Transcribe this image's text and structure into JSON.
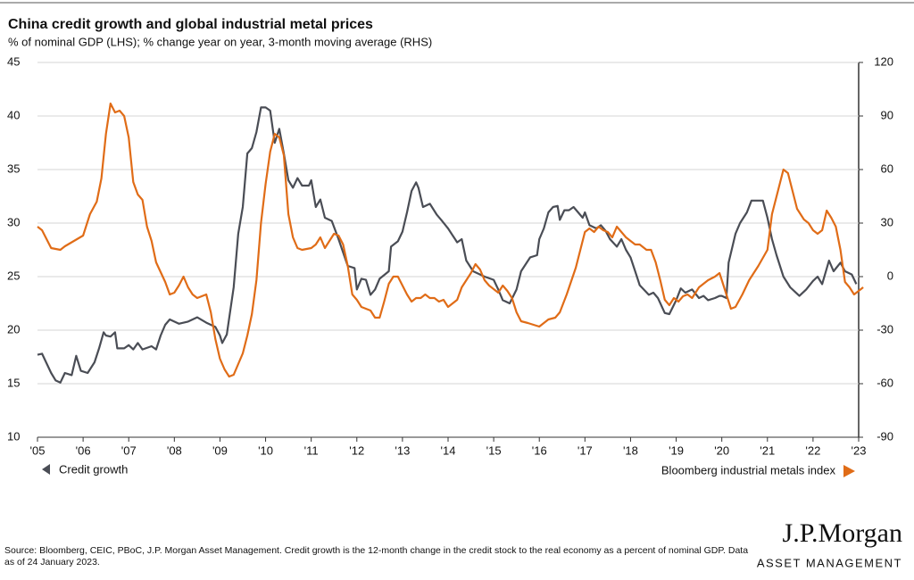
{
  "chart_data": {
    "type": "line",
    "title": "China credit growth and global industrial metal prices",
    "subtitle": "% of nominal GDP (LHS); % change year on year, 3-month moving average (RHS)",
    "xlim": [
      2005,
      2023
    ],
    "xticks": [
      {
        "value": 2005,
        "label": "'05"
      },
      {
        "value": 2006,
        "label": "'06"
      },
      {
        "value": 2007,
        "label": "'07"
      },
      {
        "value": 2008,
        "label": "'08"
      },
      {
        "value": 2009,
        "label": "'09"
      },
      {
        "value": 2010,
        "label": "'10"
      },
      {
        "value": 2011,
        "label": "'11"
      },
      {
        "value": 2012,
        "label": "'12"
      },
      {
        "value": 2013,
        "label": "'13"
      },
      {
        "value": 2014,
        "label": "'14"
      },
      {
        "value": 2015,
        "label": "'15"
      },
      {
        "value": 2016,
        "label": "'16"
      },
      {
        "value": 2017,
        "label": "'17"
      },
      {
        "value": 2018,
        "label": "'18"
      },
      {
        "value": 2019,
        "label": "'19"
      },
      {
        "value": 2020,
        "label": "'20"
      },
      {
        "value": 2021,
        "label": "'21"
      },
      {
        "value": 2022,
        "label": "'22"
      },
      {
        "value": 2023,
        "label": "'23"
      }
    ],
    "ylim": [
      10,
      45
    ],
    "yticks": [
      10,
      15,
      20,
      25,
      30,
      35,
      40,
      45
    ],
    "y2lim": [
      -90,
      120
    ],
    "y2ticks": [
      -90,
      -60,
      -30,
      0,
      30,
      60,
      90,
      120
    ],
    "grid": true,
    "series": [
      {
        "name": "Credit growth",
        "color": "#4a4d55",
        "axis": "y",
        "x": [
          2005.0,
          2005.1,
          2005.3,
          2005.4,
          2005.5,
          2005.6,
          2005.75,
          2005.85,
          2005.95,
          2006.1,
          2006.25,
          2006.35,
          2006.45,
          2006.5,
          2006.6,
          2006.7,
          2006.75,
          2006.9,
          2007.0,
          2007.1,
          2007.2,
          2007.3,
          2007.5,
          2007.6,
          2007.7,
          2007.8,
          2007.9,
          2008.1,
          2008.3,
          2008.5,
          2008.7,
          2008.9,
          2009.0,
          2009.05,
          2009.15,
          2009.3,
          2009.4,
          2009.5,
          2009.6,
          2009.7,
          2009.8,
          2009.9,
          2010.0,
          2010.1,
          2010.2,
          2010.3,
          2010.4,
          2010.5,
          2010.6,
          2010.7,
          2010.8,
          2010.95,
          2011.0,
          2011.1,
          2011.2,
          2011.3,
          2011.45,
          2011.6,
          2011.8,
          2011.95,
          2012.0,
          2012.1,
          2012.2,
          2012.3,
          2012.4,
          2012.5,
          2012.7,
          2012.75,
          2012.9,
          2013.0,
          2013.1,
          2013.2,
          2013.3,
          2013.35,
          2013.45,
          2013.6,
          2013.75,
          2013.85,
          2014.0,
          2014.2,
          2014.3,
          2014.4,
          2014.55,
          2014.7,
          2014.8,
          2015.0,
          2015.1,
          2015.2,
          2015.35,
          2015.5,
          2015.6,
          2015.8,
          2015.95,
          2016.0,
          2016.1,
          2016.2,
          2016.3,
          2016.4,
          2016.45,
          2016.55,
          2016.65,
          2016.75,
          2016.85,
          2016.95,
          2017.0,
          2017.1,
          2017.25,
          2017.35,
          2017.45,
          2017.55,
          2017.7,
          2017.8,
          2017.9,
          2018.0,
          2018.1,
          2018.2,
          2018.4,
          2018.5,
          2018.6,
          2018.75,
          2018.85,
          2019.0,
          2019.1,
          2019.2,
          2019.35,
          2019.5,
          2019.6,
          2019.7,
          2019.85,
          2019.95,
          2020.0,
          2020.1,
          2020.15,
          2020.3,
          2020.4,
          2020.55,
          2020.65,
          2020.8,
          2020.9,
          2021.0,
          2021.1,
          2021.2,
          2021.35,
          2021.5,
          2021.7,
          2021.85,
          2022.0,
          2022.1,
          2022.2,
          2022.35,
          2022.45,
          2022.6,
          2022.7,
          2022.85,
          2022.95
        ],
        "values": [
          17.7,
          17.8,
          16,
          15.3,
          15.1,
          16,
          15.8,
          17.6,
          16.2,
          16,
          17,
          18.3,
          19.8,
          19.5,
          19.4,
          19.8,
          18.3,
          18.3,
          18.6,
          18.2,
          18.8,
          18.2,
          18.5,
          18.2,
          19.5,
          20.5,
          21,
          20.6,
          20.8,
          21.2,
          20.7,
          20.3,
          19.5,
          18.8,
          19.6,
          24,
          29,
          31.5,
          36.5,
          37,
          38.5,
          40.8,
          40.8,
          40.5,
          37.5,
          38.8,
          36.5,
          34,
          33.3,
          34.2,
          33.5,
          33.5,
          34,
          31.5,
          32.2,
          30.5,
          30.2,
          28.5,
          26,
          25.8,
          23.8,
          24.8,
          24.7,
          23.3,
          23.8,
          24.8,
          25.5,
          27.8,
          28.3,
          29.2,
          31,
          33,
          33.8,
          33.3,
          31.5,
          31.8,
          30.8,
          30.3,
          29.5,
          28.2,
          28.5,
          26.5,
          25.5,
          25.2,
          25,
          24.7,
          23.8,
          22.8,
          22.5,
          23.8,
          25.5,
          26.8,
          27,
          28.5,
          29.5,
          31,
          31.5,
          31.6,
          30.3,
          31.2,
          31.2,
          31.5,
          31,
          30.5,
          31,
          29.8,
          29.5,
          29.8,
          29.3,
          28.5,
          27.8,
          28.5,
          27.5,
          26.8,
          25.5,
          24.2,
          23.3,
          23.5,
          23,
          21.6,
          21.5,
          22.8,
          23.9,
          23.5,
          23.8,
          23,
          23.2,
          22.8,
          23,
          23.2,
          23.2,
          23,
          26.3,
          29,
          30,
          31,
          32.1,
          32.1,
          32.1,
          30.5,
          28.5,
          27,
          25,
          24,
          23.2,
          23.8,
          24.6,
          25,
          24.3,
          26.5,
          25.5,
          26.3,
          25.5,
          25.2,
          24.3
        ]
      },
      {
        "name": "Bloomberg industrial metals index",
        "color": "#e06c17",
        "axis": "y2",
        "x": [
          2005.0,
          2005.1,
          2005.3,
          2005.5,
          2005.6,
          2005.8,
          2006.0,
          2006.15,
          2006.3,
          2006.4,
          2006.5,
          2006.6,
          2006.7,
          2006.8,
          2006.9,
          2007.0,
          2007.1,
          2007.2,
          2007.3,
          2007.4,
          2007.5,
          2007.6,
          2007.8,
          2007.9,
          2008.0,
          2008.1,
          2008.2,
          2008.3,
          2008.4,
          2008.5,
          2008.7,
          2008.8,
          2008.9,
          2009.0,
          2009.1,
          2009.2,
          2009.3,
          2009.4,
          2009.5,
          2009.6,
          2009.7,
          2009.8,
          2009.9,
          2010.0,
          2010.1,
          2010.2,
          2010.3,
          2010.4,
          2010.5,
          2010.6,
          2010.7,
          2010.8,
          2011.0,
          2011.1,
          2011.2,
          2011.3,
          2011.5,
          2011.6,
          2011.7,
          2011.8,
          2011.9,
          2012.0,
          2012.1,
          2012.3,
          2012.4,
          2012.5,
          2012.6,
          2012.7,
          2012.8,
          2012.9,
          2013.0,
          2013.1,
          2013.2,
          2013.3,
          2013.4,
          2013.5,
          2013.6,
          2013.7,
          2013.8,
          2013.9,
          2014.0,
          2014.1,
          2014.2,
          2014.3,
          2014.5,
          2014.6,
          2014.7,
          2014.8,
          2014.9,
          2015.0,
          2015.1,
          2015.2,
          2015.3,
          2015.4,
          2015.5,
          2015.6,
          2015.75,
          2016.0,
          2016.2,
          2016.35,
          2016.45,
          2016.6,
          2016.8,
          2016.9,
          2017.0,
          2017.1,
          2017.2,
          2017.3,
          2017.4,
          2017.5,
          2017.6,
          2017.7,
          2017.8,
          2017.9,
          2018.0,
          2018.1,
          2018.2,
          2018.35,
          2018.45,
          2018.55,
          2018.65,
          2018.75,
          2018.85,
          2018.95,
          2019.05,
          2019.15,
          2019.25,
          2019.35,
          2019.5,
          2019.7,
          2019.85,
          2019.95,
          2020.0,
          2020.1,
          2020.2,
          2020.3,
          2020.45,
          2020.6,
          2020.8,
          2021.0,
          2021.1,
          2021.25,
          2021.35,
          2021.45,
          2021.55,
          2021.65,
          2021.8,
          2021.9,
          2022.0,
          2022.1,
          2022.2,
          2022.3,
          2022.4,
          2022.5,
          2022.6,
          2022.7,
          2022.8,
          2022.9,
          2023.0,
          2023.1
        ],
        "values": [
          28,
          26,
          16,
          15,
          17,
          20,
          23,
          35,
          42,
          55,
          80,
          97,
          92,
          93,
          90,
          78,
          53,
          46,
          43,
          28,
          20,
          8,
          -3,
          -10,
          -9,
          -5,
          0,
          -6,
          -10,
          -12,
          -10,
          -20,
          -35,
          -46,
          -52,
          -56,
          -55,
          -49,
          -43,
          -33,
          -21,
          -2,
          30,
          52,
          70,
          80,
          78,
          68,
          35,
          22,
          16,
          15,
          16,
          18,
          22,
          16,
          24,
          23,
          18,
          6,
          -10,
          -13,
          -17,
          -19,
          -23,
          -23,
          -14,
          -4,
          0,
          0,
          -5,
          -10,
          -14,
          -12,
          -12,
          -10,
          -12,
          -12,
          -14,
          -13,
          -17,
          -15,
          -13,
          -6,
          2,
          7,
          4,
          -2,
          -5,
          -7,
          -9,
          -5,
          -8,
          -12,
          -20,
          -25,
          -26,
          -28,
          -24,
          -23,
          -20,
          -10,
          5,
          15,
          25,
          27,
          25,
          28,
          26,
          25,
          22,
          28,
          25,
          22,
          20,
          18,
          18,
          15,
          15,
          8,
          -2,
          -13,
          -16,
          -12,
          -14,
          -11,
          -10,
          -12,
          -6,
          -2,
          0,
          2,
          -2,
          -10,
          -18,
          -17,
          -10,
          -2,
          6,
          15,
          35,
          50,
          60,
          58,
          48,
          38,
          32,
          30,
          26,
          24,
          26,
          37,
          33,
          28,
          15,
          -3,
          -6,
          -10,
          -8,
          -6
        ]
      }
    ],
    "source": "Source: Bloomberg, CEIC, PBoC, J.P. Morgan Asset Management. Credit growth is the 12-month change in the credit stock to the real economy as a percent of nominal GDP. Data as of 24 January 2023.",
    "logo": "J.P.Morgan",
    "logo_subtitle": "ASSET MANAGEMENT"
  }
}
